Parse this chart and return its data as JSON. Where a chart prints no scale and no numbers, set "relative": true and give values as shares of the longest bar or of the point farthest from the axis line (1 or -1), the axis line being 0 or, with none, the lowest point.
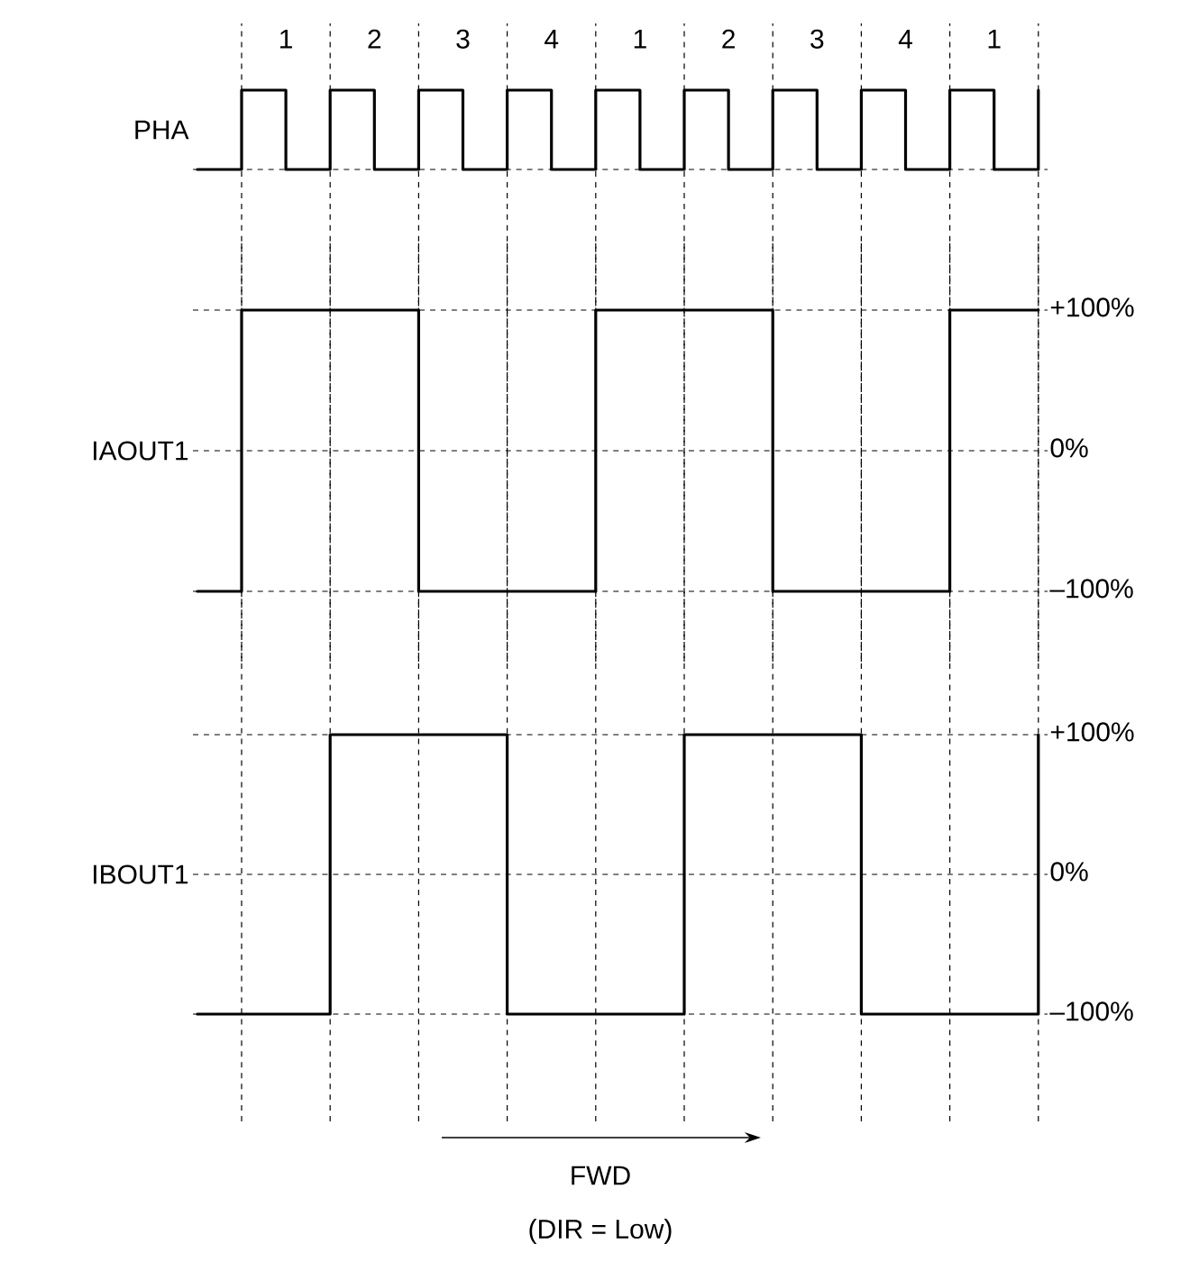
{
  "chart_data": [
    {
      "type": "step",
      "ylabel": "PHA",
      "relative": true,
      "grid": "x",
      "tick_labels": "x",
      "categories": [
        null,
        null,
        "1",
        null,
        "2",
        null,
        "3",
        null,
        "4",
        null,
        "1",
        null,
        "2",
        null,
        "3",
        null,
        "4",
        null,
        "1",
        null
      ],
      "ref_lines": [
        {
          "axis": "y",
          "value": 0,
          "line_style": "dashed"
        }
      ],
      "series": [
        {
          "color": "#000000",
          "values": [
            0,
            1,
            0,
            1,
            0,
            1,
            0,
            1,
            0,
            1,
            0,
            1,
            0,
            1,
            0,
            1,
            0,
            1,
            0,
            1
          ]
        }
      ]
    },
    {
      "type": "step",
      "ylabel": "IAOUT1",
      "ylim": [
        -100,
        100
      ],
      "grid": true,
      "tick_labels": "y",
      "categories": [
        null,
        null,
        null,
        null,
        null,
        null,
        null,
        null,
        null,
        null,
        null,
        null,
        null,
        null,
        null,
        null,
        null,
        null,
        null,
        null
      ],
      "yticks": [
        {
          "value": 100,
          "label": "+100%"
        },
        {
          "value": 0,
          "label": "0%"
        },
        {
          "value": -100,
          "label": "–100%"
        }
      ],
      "series": [
        {
          "color": "#000000",
          "values": [
            -100,
            100,
            100,
            100,
            100,
            -100,
            -100,
            -100,
            -100,
            100,
            100,
            100,
            100,
            -100,
            -100,
            -100,
            -100,
            100,
            100,
            100
          ]
        }
      ]
    },
    {
      "type": "step",
      "ylabel": "IBOUT1",
      "ylim": [
        -100,
        100
      ],
      "grid": true,
      "tick_labels": "y",
      "categories": [
        null,
        null,
        null,
        null,
        null,
        null,
        null,
        null,
        null,
        null,
        null,
        null,
        null,
        null,
        null,
        null,
        null,
        null,
        null,
        null
      ],
      "yticks": [
        {
          "value": 100,
          "label": "+100%"
        },
        {
          "value": 0,
          "label": "0%"
        },
        {
          "value": -100,
          "label": "–100%"
        }
      ],
      "annotations": [
        "FWD",
        "(DIR = Low)"
      ],
      "series": [
        {
          "color": "#000000",
          "values": [
            -100,
            -100,
            -100,
            100,
            100,
            100,
            100,
            -100,
            -100,
            -100,
            -100,
            100,
            100,
            100,
            100,
            -100,
            -100,
            -100,
            -100,
            100
          ]
        }
      ]
    }
  ]
}
